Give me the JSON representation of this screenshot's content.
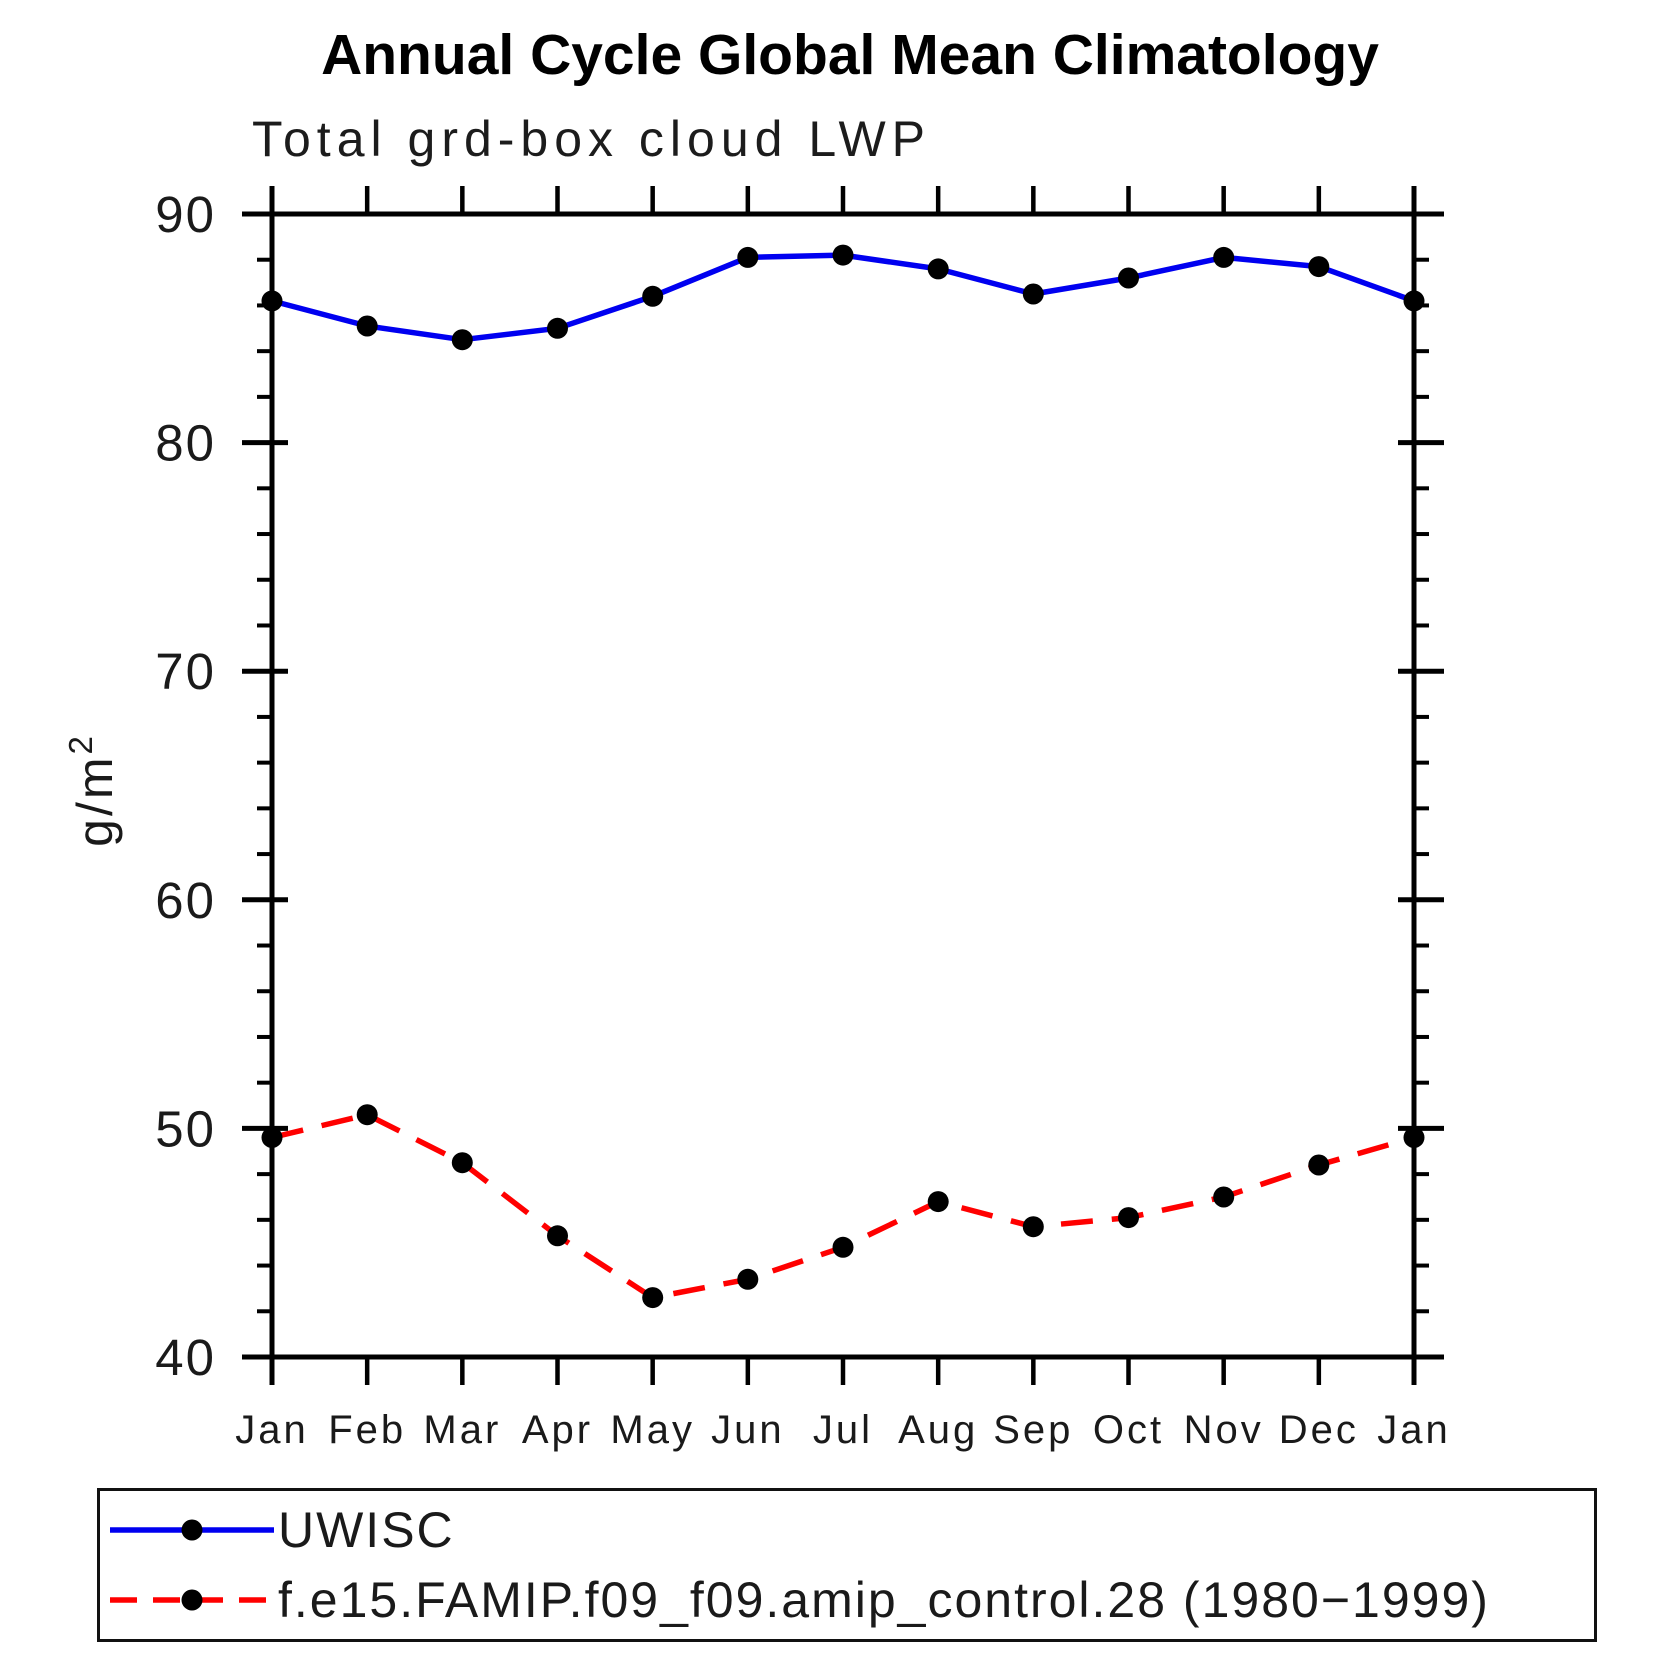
{
  "chart_data": {
    "type": "line",
    "title": "Annual Cycle Global Mean Climatology",
    "subtitle": "Total grd-box cloud LWP",
    "ylabel": "g/m²",
    "ylabel_parts": {
      "base": "g/m",
      "sup": "2"
    },
    "x_categories": [
      "Jan",
      "Feb",
      "Mar",
      "Apr",
      "May",
      "Jun",
      "Jul",
      "Aug",
      "Sep",
      "Oct",
      "Nov",
      "Dec",
      "Jan"
    ],
    "ylim": [
      40,
      90
    ],
    "ytick_major": [
      40,
      50,
      60,
      70,
      80,
      90
    ],
    "ytick_minor_step": 2,
    "grid": false,
    "legend_position": "bottom-left-box",
    "series": [
      {
        "name": "UWISC",
        "line_color": "#0000F0",
        "line_style": "solid",
        "marker": "filled-circle",
        "marker_color": "#000000",
        "values": [
          86.2,
          85.1,
          84.5,
          85.0,
          86.4,
          88.1,
          88.2,
          87.6,
          86.5,
          87.2,
          88.1,
          87.7,
          86.2
        ]
      },
      {
        "name": "f.e15.FAMIP.f09_f09.amip_control.28 (1980−1999)",
        "line_color": "#FF0000",
        "line_style": "dashed",
        "marker": "filled-circle",
        "marker_color": "#000000",
        "values": [
          49.6,
          50.6,
          48.5,
          45.3,
          42.6,
          43.4,
          44.8,
          46.8,
          45.7,
          46.1,
          47.0,
          48.4,
          49.6
        ]
      }
    ]
  }
}
